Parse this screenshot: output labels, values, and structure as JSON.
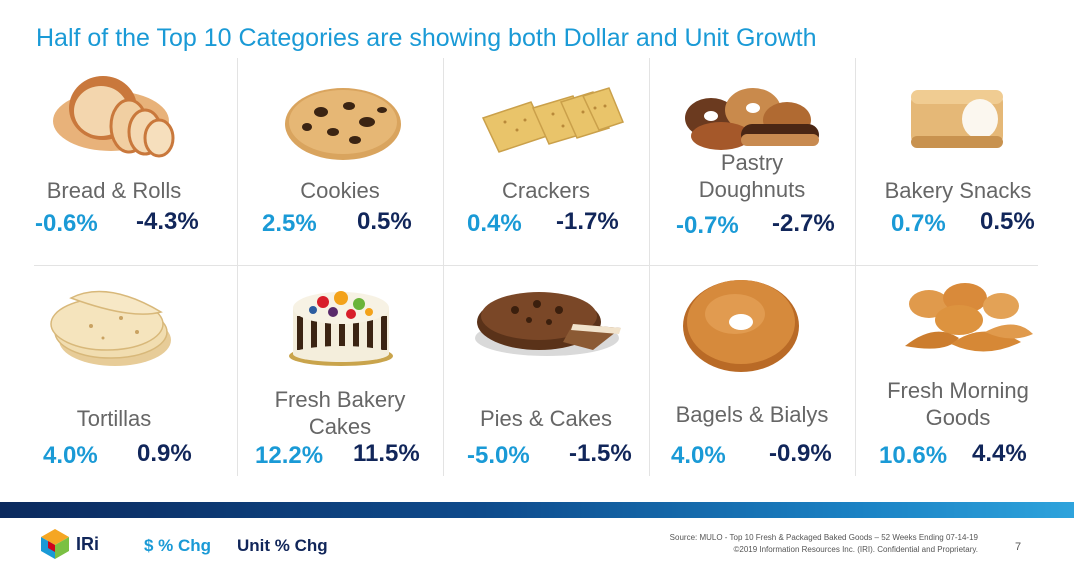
{
  "title": "Half of the Top 10 Categories are showing both Dollar and Unit Growth",
  "categories": [
    {
      "name": "Bread & Rolls",
      "dollar_chg": "-0.6%",
      "unit_chg": "-4.3%",
      "icon": "bread-loaf-icon"
    },
    {
      "name": "Cookies",
      "dollar_chg": "2.5%",
      "unit_chg": "0.5%",
      "icon": "cookie-icon"
    },
    {
      "name": "Crackers",
      "dollar_chg": "0.4%",
      "unit_chg": "-1.7%",
      "icon": "crackers-icon"
    },
    {
      "name": "Pastry\nDoughnuts",
      "dollar_chg": "-0.7%",
      "unit_chg": "-2.7%",
      "icon": "doughnuts-icon"
    },
    {
      "name": "Bakery Snacks",
      "dollar_chg": "0.7%",
      "unit_chg": "0.5%",
      "icon": "snack-cake-icon"
    },
    {
      "name": "Tortillas",
      "dollar_chg": "4.0%",
      "unit_chg": "0.9%",
      "icon": "tortillas-icon"
    },
    {
      "name": "Fresh Bakery\nCakes",
      "dollar_chg": "12.2%",
      "unit_chg": "11.5%",
      "icon": "fruit-cake-icon"
    },
    {
      "name": "Pies & Cakes",
      "dollar_chg": "-5.0%",
      "unit_chg": "-1.5%",
      "icon": "chocolate-pie-icon"
    },
    {
      "name": "Bagels & Bialys",
      "dollar_chg": "4.0%",
      "unit_chg": "-0.9%",
      "icon": "bagel-icon"
    },
    {
      "name": "Fresh Morning\nGoods",
      "dollar_chg": "10.6%",
      "unit_chg": "4.4%",
      "icon": "croissants-icon"
    }
  ],
  "legend": {
    "dollar_label": "$ % Chg",
    "unit_label": "Unit % Chg"
  },
  "logo": {
    "text": "IRi"
  },
  "source": {
    "line1": "Source: MULO - Top 10 Fresh & Packaged Baked Goods – 52 Weeks Ending 07-14-19",
    "line2": "©2019 Information Resources Inc. (IRI). Confidential and Proprietary."
  },
  "page_number": "7",
  "colors": {
    "title": "#1a9ad6",
    "dollar": "#1a9ad6",
    "unit": "#11265a",
    "label": "#666666"
  }
}
